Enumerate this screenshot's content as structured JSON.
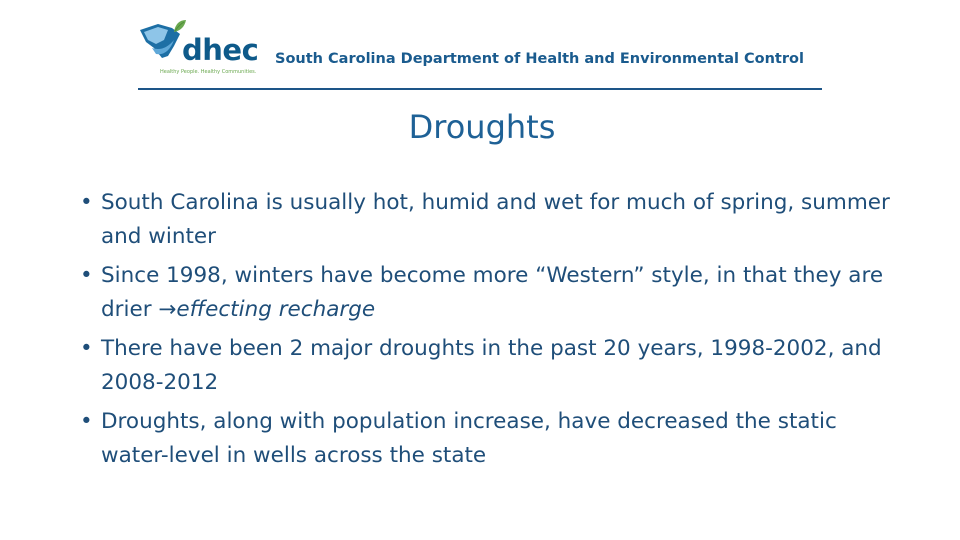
{
  "header": {
    "logo_text": "dhec",
    "logo_tagline": "Healthy People. Healthy Communities.",
    "department_name": "South Carolina Department of Health and Environmental Control"
  },
  "slide": {
    "title": "Droughts",
    "bullet_symbol": "•",
    "bullets": [
      {
        "text": "South Carolina is usually hot, humid and wet for much of spring, summer and winter"
      },
      {
        "text": "Since 1998, winters have become more “Western” style, in that they are drier ",
        "arrow": "→",
        "emphasis": "effecting recharge"
      },
      {
        "text": "There have been 2 major droughts in the past 20 years, 1998-2002, and 2008-2012"
      },
      {
        "text": "Droughts, along with population increase, have decreased the static water-level in wells across the state"
      }
    ]
  },
  "colors": {
    "brand_blue": "#0e5a8a",
    "brand_green": "#6aa84f",
    "title_blue": "#1e6196",
    "text_blue": "#1f4e79",
    "rule_blue": "#1d5588"
  }
}
